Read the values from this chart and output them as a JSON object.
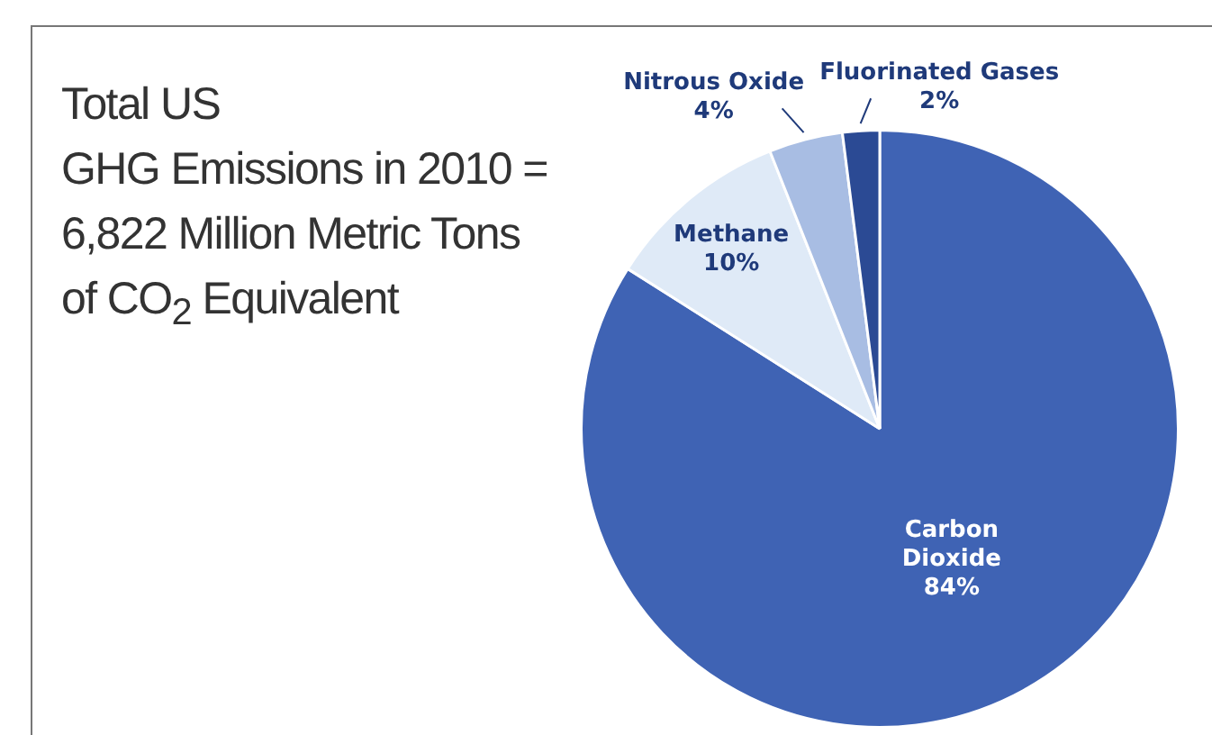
{
  "chart_data": {
    "type": "pie",
    "title": "Total US\nGHG Emissions in 2010 =\n6,822 Million Metric Tons\nof CO$_{2}$ Equivalent",
    "categories": [
      "Carbon Dioxide",
      "Methane",
      "Nitrous Oxide",
      "Fluorinated Gases"
    ],
    "values": [
      84,
      10,
      4,
      2
    ],
    "colors": [
      "#3f63b4",
      "#dfeaf7",
      "#a8bde3",
      "#2b4a94"
    ],
    "value_labels": [
      "84%",
      "10%",
      "4%",
      "2%"
    ],
    "legend": false
  }
}
